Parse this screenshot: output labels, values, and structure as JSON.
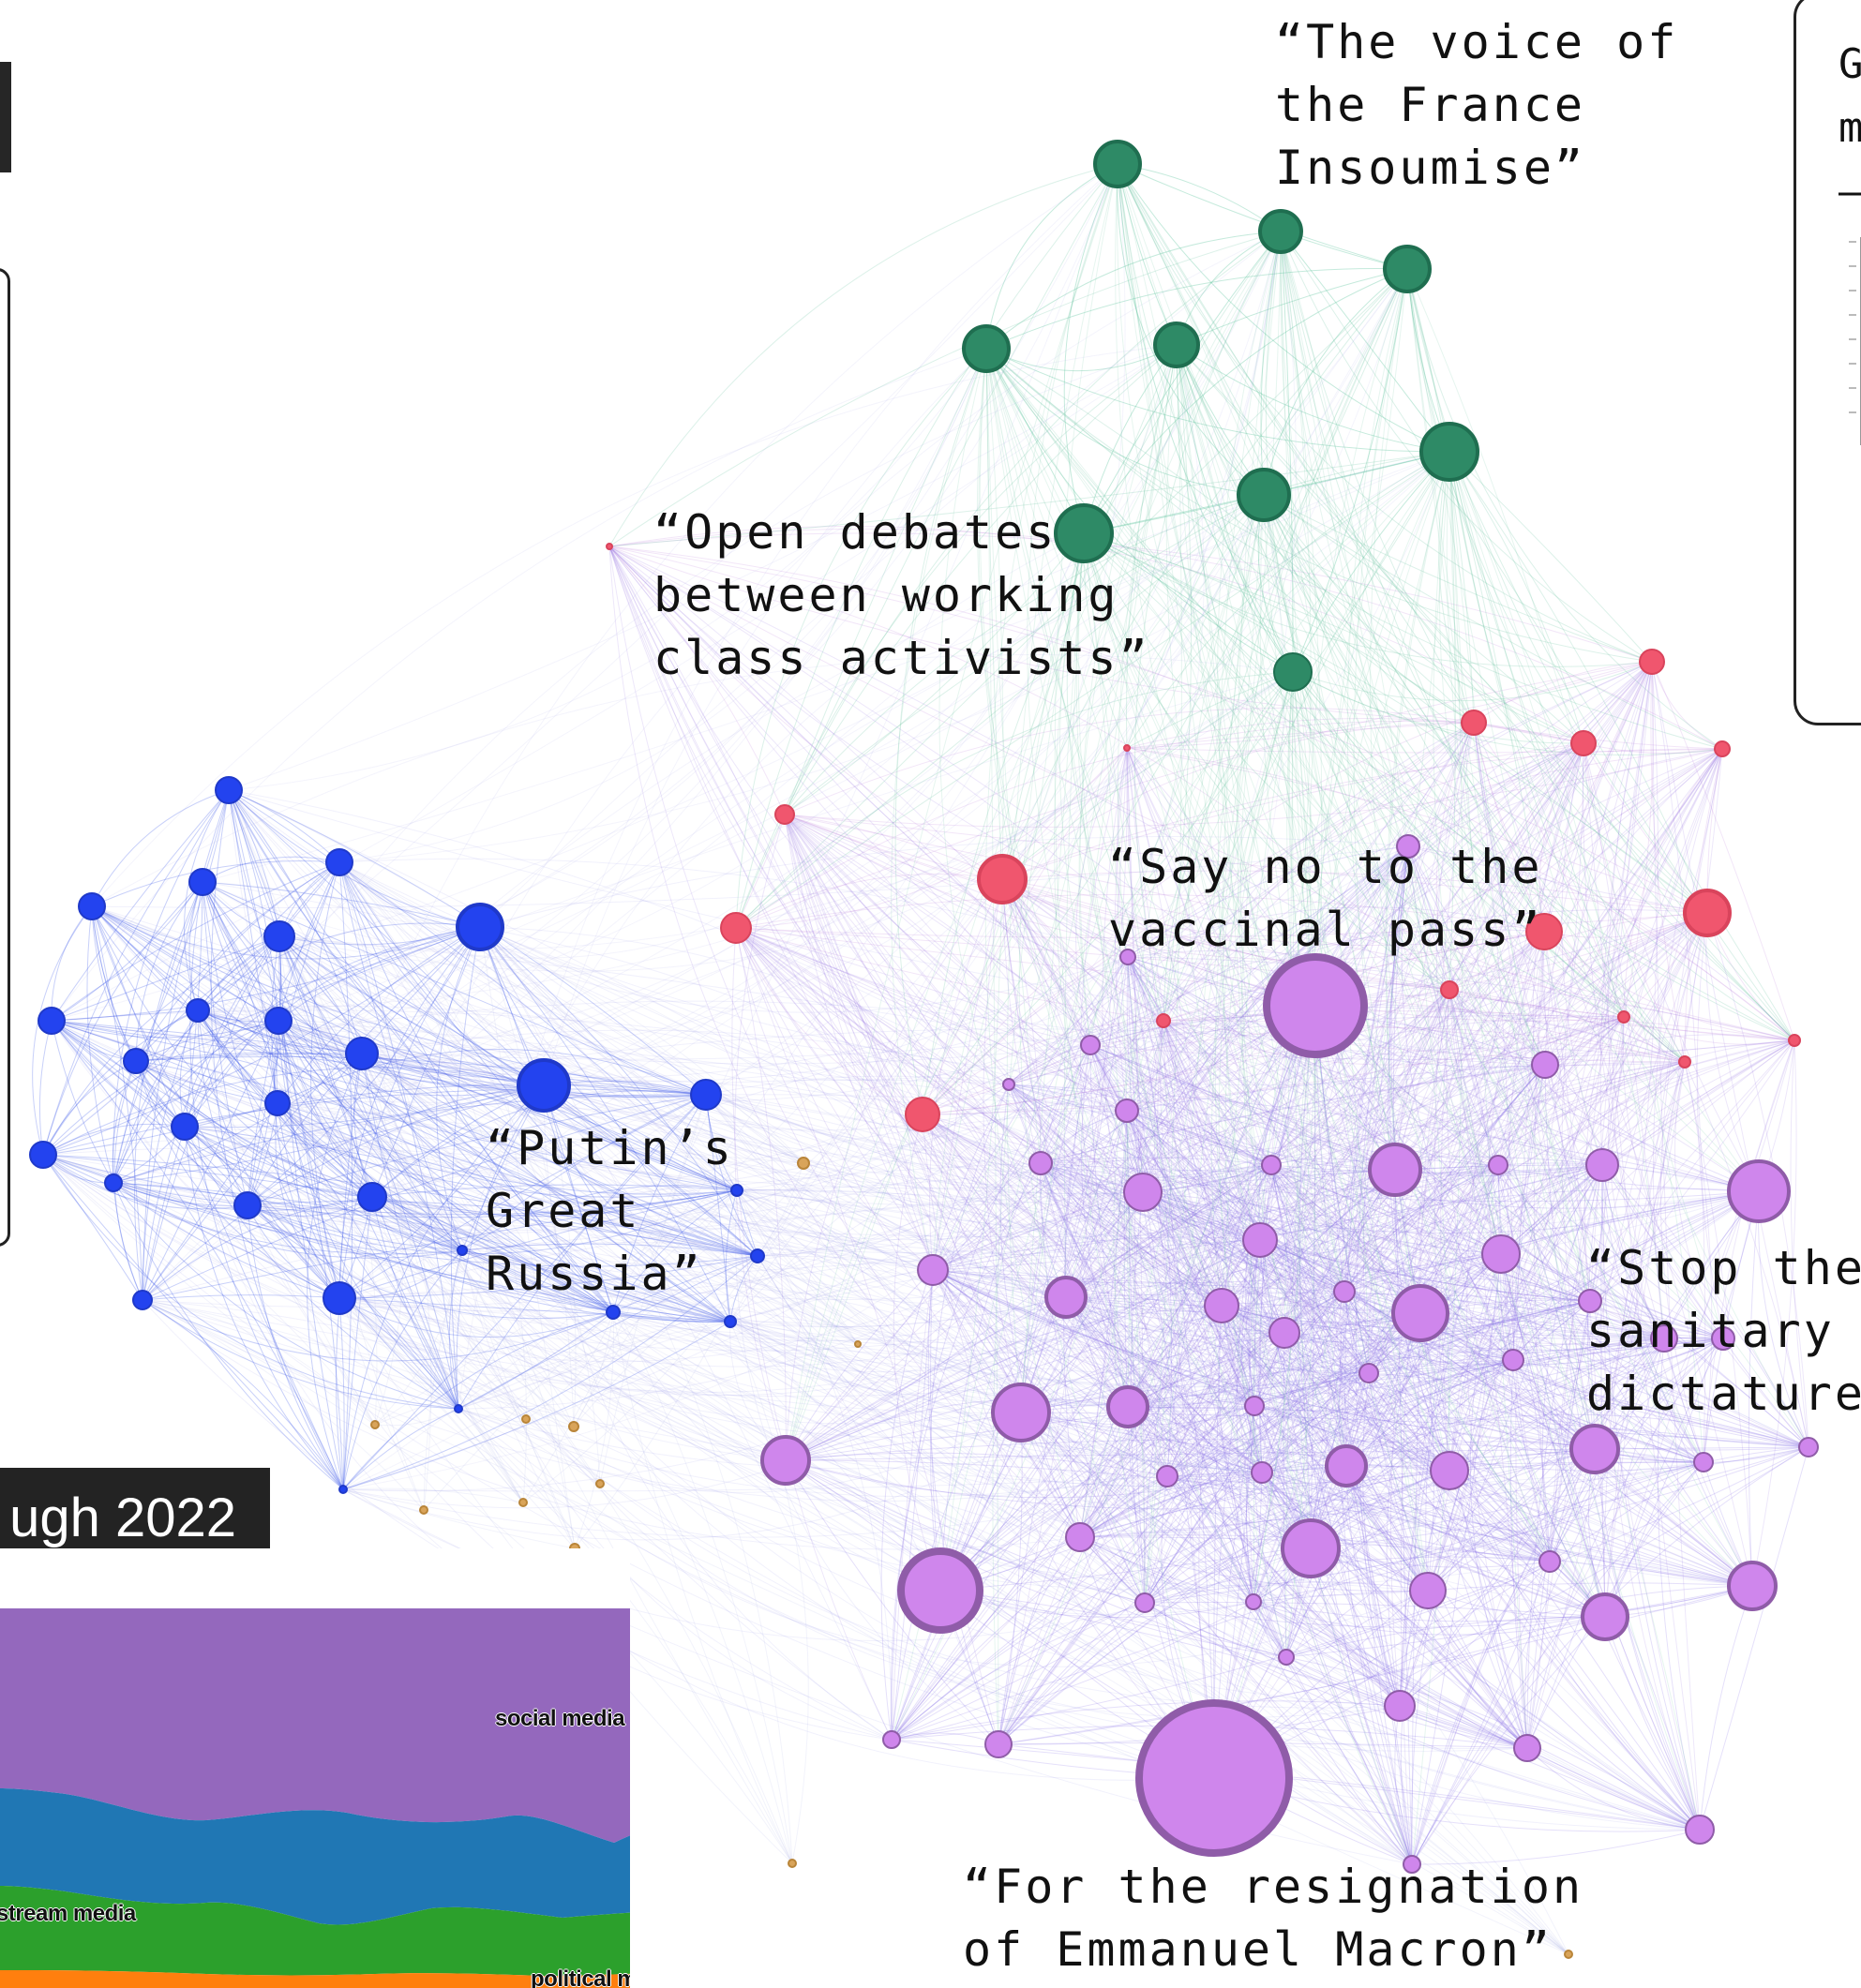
{
  "labels": {
    "france_insoumise": "“The voice of\nthe France\nInsoumise”",
    "open_debates": "“Open debates\nbetween working\nclass activists”",
    "vaccinal_pass": "“Say no to the\nvaccinal pass”",
    "putin": "“Putin’s\nGreat\nRussia”",
    "sanitary": "“Stop the\nsanitary\ndictature”",
    "macron": "“For the resignation\nof Emmanuel Macron”"
  },
  "right_panel": {
    "text": "G\nm\n–"
  },
  "timeline": {
    "heading": "ugh 2022",
    "stream_labels": {
      "social": "social media",
      "mainstream": "stream media",
      "political": "political media"
    }
  },
  "colors": {
    "green": "#2e8a66",
    "blue": "#2343ef",
    "red": "#f0566e",
    "purple": "#cf86ec",
    "purple_stroke": "#8f5ca8",
    "stream_purple": "#9468bd",
    "stream_blue": "#2077b4",
    "stream_green": "#2ca02c",
    "stream_orange": "#ff7f0e"
  }
}
